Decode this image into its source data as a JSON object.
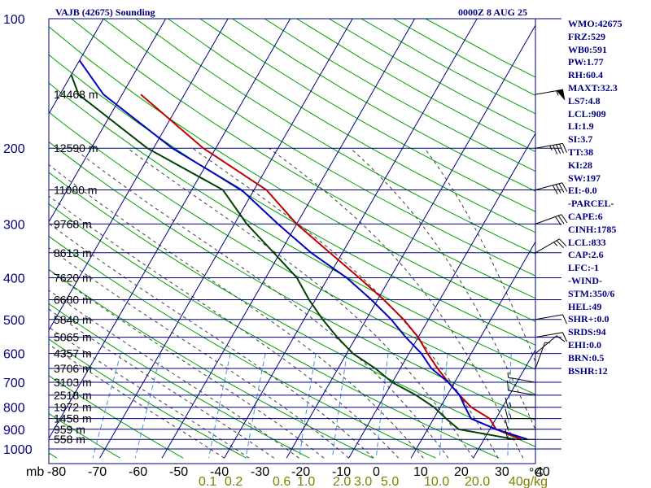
{
  "header": {
    "title": "VAJB (42675) Sounding",
    "time": "0000Z  8 AUG 25"
  },
  "indices": [
    "WMO:42675",
    "FRZ:529",
    "WB0:591",
    "PW:1.77",
    "RH:60.4",
    "MAXT:32.3",
    "LS7:4.8",
    "LCL:909",
    "LI:1.9",
    "SI:3.7",
    "TT:38",
    "KI:28",
    "SW:197",
    "EI:-0.0",
    "-PARCEL-",
    "CAPE:6",
    "CINH:1785",
    "LCL:833",
    "CAP:2.6",
    "LFC:-1",
    "-WIND-",
    "STM:350/6",
    "HEL:49",
    "SHR+:0.0",
    "SRDS:94",
    "EHI:0.0",
    "BRN:0.5",
    "BSHR:12"
  ],
  "colors": {
    "isobar": "#000080",
    "isotherm": "#000080",
    "dry_adiabat": "#00a000",
    "moist_adiabat": "#404040",
    "mixing_ratio": "#4a90e0",
    "temperature": "#c00000",
    "virtual_temperature": "#0000c0",
    "dewpoint": "#004000"
  },
  "chart_data": {
    "type": "line",
    "title": "VAJB (42675) Sounding",
    "x_axis": {
      "label": "°C",
      "range": [
        -80,
        40
      ],
      "ticks": [
        "-80",
        "-70",
        "-60",
        "-50",
        "-40",
        "-30",
        "-20",
        "-10",
        "0",
        "10",
        "20",
        "30",
        "40"
      ]
    },
    "y_axis": {
      "label": "mb",
      "scale": "log",
      "range": [
        100,
        1000
      ],
      "ticks": [
        "100",
        "200",
        "300",
        "400",
        "500",
        "600",
        "700",
        "800",
        "900",
        "1000"
      ]
    },
    "pressure_levels": [
      100,
      200,
      250,
      300,
      350,
      400,
      450,
      500,
      550,
      600,
      650,
      700,
      750,
      800,
      850,
      900,
      950,
      1000
    ],
    "height_labels": [
      {
        "p": 150,
        "label": "14468 m"
      },
      {
        "p": 200,
        "label": "12590 m"
      },
      {
        "p": 250,
        "label": "11080 m"
      },
      {
        "p": 300,
        "label": "9768 m"
      },
      {
        "p": 350,
        "label": "8613 m"
      },
      {
        "p": 400,
        "label": "7620 m"
      },
      {
        "p": 450,
        "label": "6680 m"
      },
      {
        "p": 500,
        "label": "5840 m"
      },
      {
        "p": 550,
        "label": "5065 m"
      },
      {
        "p": 600,
        "label": "4357 m"
      },
      {
        "p": 650,
        "label": "3706 m"
      },
      {
        "p": 700,
        "label": "3103 m"
      },
      {
        "p": 750,
        "label": "2518 m"
      },
      {
        "p": 800,
        "label": "1972 m"
      },
      {
        "p": 850,
        "label": "1458 m"
      },
      {
        "p": 900,
        "label": "959 m"
      },
      {
        "p": 950,
        "label": "558 m"
      }
    ],
    "mixing_ratio_labels": [
      "0.1",
      "0.2",
      "0.6",
      "1.0",
      "2.0",
      "3.0",
      "5.0",
      "10.0",
      "20.0",
      "40g/kg"
    ],
    "mixing_ratios": [
      0.1,
      0.2,
      0.6,
      1.0,
      2.0,
      3.0,
      5.0,
      10.0,
      20.0,
      40.0
    ],
    "series": [
      {
        "key": "temperature",
        "points": [
          [
            150,
            -67
          ],
          [
            200,
            -52
          ],
          [
            250,
            -38
          ],
          [
            300,
            -30
          ],
          [
            350,
            -22
          ],
          [
            400,
            -15
          ],
          [
            450,
            -9
          ],
          [
            500,
            -4
          ],
          [
            550,
            0
          ],
          [
            600,
            3
          ],
          [
            650,
            6
          ],
          [
            700,
            9
          ],
          [
            750,
            12
          ],
          [
            800,
            15
          ],
          [
            850,
            19
          ],
          [
            900,
            21
          ],
          [
            950,
            26
          ]
        ]
      },
      {
        "key": "virtual_temperature",
        "points": [
          [
            125,
            -80
          ],
          [
            150,
            -73
          ],
          [
            200,
            -57
          ],
          [
            250,
            -42
          ],
          [
            300,
            -33
          ],
          [
            350,
            -25
          ],
          [
            400,
            -17
          ],
          [
            450,
            -11
          ],
          [
            500,
            -6
          ],
          [
            550,
            -2
          ],
          [
            600,
            2
          ],
          [
            650,
            5
          ],
          [
            700,
            9
          ],
          [
            750,
            12
          ],
          [
            800,
            14
          ],
          [
            850,
            16
          ],
          [
            900,
            21
          ],
          [
            950,
            27
          ]
        ]
      },
      {
        "key": "dewpoint",
        "points": [
          [
            135,
            -80
          ],
          [
            150,
            -77
          ],
          [
            200,
            -61
          ],
          [
            250,
            -45
          ],
          [
            300,
            -38
          ],
          [
            350,
            -31
          ],
          [
            400,
            -25
          ],
          [
            450,
            -21
          ],
          [
            500,
            -17
          ],
          [
            550,
            -13
          ],
          [
            600,
            -9
          ],
          [
            650,
            -4
          ],
          [
            700,
            0
          ],
          [
            750,
            5
          ],
          [
            800,
            9
          ],
          [
            850,
            12
          ],
          [
            900,
            15
          ],
          [
            950,
            25
          ]
        ]
      }
    ],
    "wind_barbs": [
      {
        "p": 150,
        "dir": 80,
        "kt": 55
      },
      {
        "p": 200,
        "dir": 80,
        "kt": 45
      },
      {
        "p": 250,
        "dir": 75,
        "kt": 40
      },
      {
        "p": 300,
        "dir": 70,
        "kt": 30
      },
      {
        "p": 350,
        "dir": 60,
        "kt": 25
      },
      {
        "p": 500,
        "dir": 80,
        "kt": 10
      },
      {
        "p": 550,
        "dir": 80,
        "kt": 10
      },
      {
        "p": 600,
        "dir": 50,
        "kt": 10
      },
      {
        "p": 650,
        "dir": 20,
        "kt": 5
      },
      {
        "p": 700,
        "dir": 280,
        "kt": 5
      },
      {
        "p": 750,
        "dir": 280,
        "kt": 10
      },
      {
        "p": 800,
        "dir": 270,
        "kt": 15
      },
      {
        "p": 850,
        "dir": 270,
        "kt": 15
      },
      {
        "p": 900,
        "dir": 270,
        "kt": 10
      },
      {
        "p": 950,
        "dir": 270,
        "kt": 10
      }
    ],
    "grid": true
  }
}
